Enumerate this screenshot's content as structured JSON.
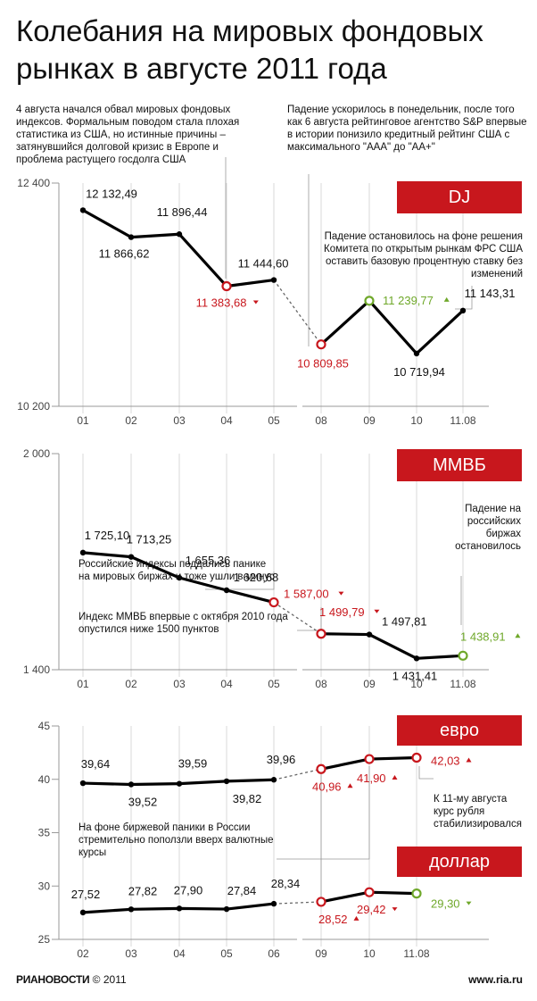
{
  "title": "Колебания на мировых фондовых рынках в августе 2011 года",
  "notes": {
    "dj_left": "4 августа начался обвал мировых фондовых индексов. Формальным поводом стала плохая статистика из США, но истинные причины – затянувшийся долговой кризис в Европе и проблема растущего госдолга США",
    "dj_right": "Падение ускорилось в понедельник, после того как 6 августа рейтинговое агентство S&P впервые в истории понизило кредитный рейтинг США с максимального \"ААА\" до \"АА+\"",
    "dj_fed": "Падение остановилось на фоне решения Комитета по открытым рынкам ФРС США оставить базовую процентную ставку без изменений",
    "micex_panic": "Российские индексы поддались панике на мировых биржах и тоже ушли в минус",
    "micex_1500": "Индекс ММВБ впервые с октября 2010 года опустился ниже 1500 пунктов",
    "micex_stop": "Падение на российских биржах остановилось",
    "fx_panic": "На фоне биржевой паники в России стремительно поползли вверх валютные курсы",
    "fx_stable": "К 11-му августа курс рубля стабилизировался"
  },
  "footer": {
    "brand": "РИАНОВОСТИ",
    "copyright": "© 2011",
    "site": "www.ria.ru"
  },
  "chart_data": [
    {
      "type": "line",
      "name": "DJ",
      "categories": [
        "01",
        "02",
        "03",
        "04",
        "05",
        "08",
        "09",
        "10",
        "11.08"
      ],
      "values": [
        12132.49,
        11866.62,
        11896.44,
        11383.68,
        11444.6,
        10809.85,
        11239.77,
        10719.94,
        11143.31
      ],
      "labels": [
        "12 132,49",
        "11 866,62",
        "11 896,44",
        "11 383,68",
        "11 444,60",
        "10 809,85",
        "11 239,77",
        "10 719,94",
        "11 143,31"
      ],
      "ylim": [
        10200,
        12400
      ],
      "yticks": [
        "12 400",
        "10 200"
      ]
    },
    {
      "type": "line",
      "name": "ММВБ",
      "categories": [
        "01",
        "02",
        "03",
        "04",
        "05",
        "08",
        "09",
        "10",
        "11.08"
      ],
      "values": [
        1725.1,
        1713.25,
        1655.36,
        1620.68,
        1587.0,
        1499.79,
        1497.81,
        1431.41,
        1438.91
      ],
      "labels": [
        "1 725,10",
        "1 713,25",
        "1 655,36",
        "1 620,68",
        "1 587,00",
        "1 499,79",
        "1 497,81",
        "1 431,41",
        "1 438,91"
      ],
      "ylim": [
        1400,
        2000
      ],
      "yticks": [
        "2 000",
        "1 400"
      ]
    },
    {
      "type": "line",
      "yticks": [
        "45",
        "40",
        "35",
        "30",
        "25"
      ],
      "ylim": [
        25,
        45
      ],
      "categories": [
        "02",
        "03",
        "04",
        "05",
        "06",
        "09",
        "10",
        "11.08"
      ],
      "series": [
        {
          "name": "евро",
          "values": [
            39.64,
            39.52,
            39.59,
            39.82,
            39.96,
            40.96,
            41.9,
            42.03
          ],
          "labels": [
            "39,64",
            "39,52",
            "39,59",
            "39,82",
            "39,96",
            "40,96",
            "41,90",
            "42,03"
          ]
        },
        {
          "name": "доллар",
          "values": [
            27.52,
            27.82,
            27.9,
            27.84,
            28.34,
            28.52,
            29.42,
            29.3
          ],
          "labels": [
            "27,52",
            "27,82",
            "27,90",
            "27,84",
            "28,34",
            "28,52",
            "29,42",
            "29,30"
          ]
        }
      ]
    }
  ],
  "colors": {
    "red": "#c8171d",
    "green": "#6fa82a",
    "line": "#000000",
    "axis": "#999999"
  }
}
